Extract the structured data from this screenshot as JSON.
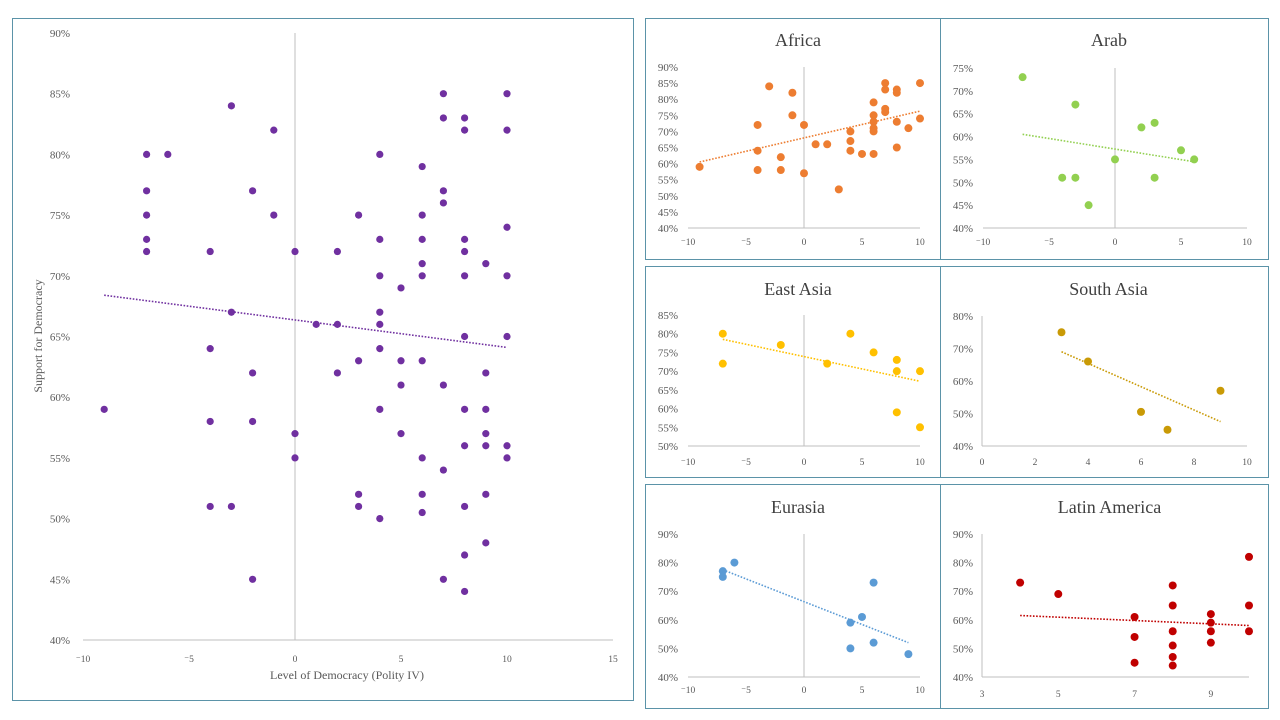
{
  "chart_data": [
    {
      "id": "main",
      "type": "scatter",
      "title": "",
      "xlabel": "Level  of Democracy  (Polity IV)",
      "ylabel": "Support  for Democracy",
      "xlim": [
        -10,
        15
      ],
      "ylim": [
        40,
        90
      ],
      "xticks": [
        "-10",
        "-5",
        "0",
        "5",
        "10",
        "15"
      ],
      "yticks": [
        "40%",
        "45%",
        "50%",
        "55%",
        "60%",
        "65%",
        "70%",
        "75%",
        "80%",
        "85%",
        "90%"
      ],
      "color": "#7030a0",
      "trendline": {
        "x": [
          -9,
          10
        ],
        "y": [
          68.4,
          64.1
        ],
        "style": "dotted"
      },
      "points": [
        [
          -9,
          59
        ],
        [
          -7,
          80
        ],
        [
          -7,
          77
        ],
        [
          -7,
          75
        ],
        [
          -7,
          73
        ],
        [
          -7,
          72
        ],
        [
          -6,
          80
        ],
        [
          -4,
          72
        ],
        [
          -4,
          64
        ],
        [
          -4,
          58
        ],
        [
          -4,
          51
        ],
        [
          -3,
          84
        ],
        [
          -3,
          67
        ],
        [
          -3,
          51
        ],
        [
          -2,
          77
        ],
        [
          -2,
          62
        ],
        [
          -2,
          58
        ],
        [
          -2,
          45
        ],
        [
          -1,
          82
        ],
        [
          -1,
          75
        ],
        [
          0,
          72
        ],
        [
          0,
          57
        ],
        [
          0,
          55
        ],
        [
          1,
          66
        ],
        [
          2,
          72
        ],
        [
          2,
          66
        ],
        [
          2,
          62
        ],
        [
          3,
          75
        ],
        [
          3,
          63
        ],
        [
          3,
          52
        ],
        [
          3,
          51
        ],
        [
          4,
          80
        ],
        [
          4,
          73
        ],
        [
          4,
          70
        ],
        [
          4,
          67
        ],
        [
          4,
          66
        ],
        [
          4,
          64
        ],
        [
          4,
          59
        ],
        [
          4,
          50
        ],
        [
          5,
          69
        ],
        [
          5,
          63
        ],
        [
          5,
          61
        ],
        [
          5,
          57
        ],
        [
          6,
          79
        ],
        [
          6,
          75
        ],
        [
          6,
          73
        ],
        [
          6,
          71
        ],
        [
          6,
          70
        ],
        [
          6,
          63
        ],
        [
          6,
          55
        ],
        [
          6,
          52
        ],
        [
          6,
          50.5
        ],
        [
          7,
          85
        ],
        [
          7,
          83
        ],
        [
          7,
          77
        ],
        [
          7,
          76
        ],
        [
          7,
          61
        ],
        [
          7,
          54
        ],
        [
          7,
          45
        ],
        [
          8,
          83
        ],
        [
          8,
          82
        ],
        [
          8,
          73
        ],
        [
          8,
          72
        ],
        [
          8,
          70
        ],
        [
          8,
          65
        ],
        [
          8,
          59
        ],
        [
          8,
          56
        ],
        [
          8,
          51
        ],
        [
          8,
          47
        ],
        [
          8,
          44
        ],
        [
          9,
          71
        ],
        [
          9,
          62
        ],
        [
          9,
          59
        ],
        [
          9,
          57
        ],
        [
          9,
          56
        ],
        [
          9,
          52
        ],
        [
          9,
          48
        ],
        [
          10,
          85
        ],
        [
          10,
          82
        ],
        [
          10,
          74
        ],
        [
          10,
          70
        ],
        [
          10,
          65
        ],
        [
          10,
          56
        ],
        [
          10,
          55
        ]
      ]
    },
    {
      "id": "africa",
      "type": "scatter",
      "title": "Africa",
      "xlim": [
        -10,
        10
      ],
      "ylim": [
        40,
        90
      ],
      "xticks": [
        "-10",
        "-5",
        "0",
        "5",
        "10"
      ],
      "yticks": [
        "40%",
        "45%",
        "50%",
        "55%",
        "60%",
        "65%",
        "70%",
        "75%",
        "80%",
        "85%",
        "90%"
      ],
      "color": "#ed7d31",
      "trendline": {
        "x": [
          -9,
          10
        ],
        "y": [
          60.5,
          76.3
        ],
        "style": "dotted"
      },
      "points": [
        [
          -9,
          59
        ],
        [
          -4,
          72
        ],
        [
          -4,
          64
        ],
        [
          -4,
          58
        ],
        [
          -3,
          84
        ],
        [
          -2,
          62
        ],
        [
          -2,
          58
        ],
        [
          -1,
          82
        ],
        [
          -1,
          75
        ],
        [
          0,
          72
        ],
        [
          0,
          57
        ],
        [
          1,
          66
        ],
        [
          2,
          66
        ],
        [
          3,
          52
        ],
        [
          4,
          70
        ],
        [
          4,
          67
        ],
        [
          4,
          64
        ],
        [
          5,
          63
        ],
        [
          6,
          79
        ],
        [
          6,
          75
        ],
        [
          6,
          73
        ],
        [
          6,
          71
        ],
        [
          6,
          70
        ],
        [
          6,
          63
        ],
        [
          7,
          85
        ],
        [
          7,
          83
        ],
        [
          7,
          77
        ],
        [
          7,
          76
        ],
        [
          8,
          83
        ],
        [
          8,
          82
        ],
        [
          8,
          73
        ],
        [
          8,
          65
        ],
        [
          9,
          71
        ],
        [
          10,
          85
        ],
        [
          10,
          74
        ]
      ]
    },
    {
      "id": "arab",
      "type": "scatter",
      "title": "Arab",
      "xlim": [
        -10,
        10
      ],
      "ylim": [
        40,
        75
      ],
      "xticks": [
        "-10",
        "-5",
        "0",
        "5",
        "10"
      ],
      "yticks": [
        "40%",
        "45%",
        "50%",
        "55%",
        "60%",
        "65%",
        "70%",
        "75%"
      ],
      "color": "#92d050",
      "trendline": {
        "x": [
          -7,
          6
        ],
        "y": [
          60.5,
          54.5
        ],
        "style": "dotted"
      },
      "points": [
        [
          -7,
          73
        ],
        [
          -4,
          51
        ],
        [
          -3,
          67
        ],
        [
          -3,
          51
        ],
        [
          -2,
          45
        ],
        [
          0,
          55
        ],
        [
          2,
          62
        ],
        [
          3,
          63
        ],
        [
          3,
          51
        ],
        [
          5,
          57
        ],
        [
          6,
          55
        ]
      ]
    },
    {
      "id": "east-asia",
      "type": "scatter",
      "title": "East Asia",
      "xlim": [
        -10,
        10
      ],
      "ylim": [
        50,
        85
      ],
      "xticks": [
        "-10",
        "-5",
        "0",
        "5",
        "10"
      ],
      "yticks": [
        "50%",
        "55%",
        "60%",
        "65%",
        "70%",
        "75%",
        "80%",
        "85%"
      ],
      "color": "#ffc000",
      "trendline": {
        "x": [
          -7,
          10
        ],
        "y": [
          78.5,
          67.3
        ],
        "style": "dotted"
      },
      "points": [
        [
          -7,
          80
        ],
        [
          -7,
          72
        ],
        [
          -2,
          77
        ],
        [
          2,
          72
        ],
        [
          4,
          80
        ],
        [
          6,
          75
        ],
        [
          8,
          73
        ],
        [
          8,
          70
        ],
        [
          8,
          59
        ],
        [
          10,
          70
        ],
        [
          10,
          55
        ]
      ]
    },
    {
      "id": "south-asia",
      "type": "scatter",
      "title": "South Asia",
      "xlim": [
        0,
        10
      ],
      "ylim": [
        40,
        80
      ],
      "xticks": [
        "0",
        "2",
        "4",
        "6",
        "8",
        "10"
      ],
      "yticks": [
        "40%",
        "50%",
        "60%",
        "70%",
        "80%"
      ],
      "color": "#c99a06",
      "trendline": {
        "x": [
          3,
          9
        ],
        "y": [
          69,
          47.5
        ],
        "style": "dotted"
      },
      "points": [
        [
          3,
          75
        ],
        [
          4,
          66
        ],
        [
          6,
          50.5
        ],
        [
          7,
          45
        ],
        [
          9,
          57
        ]
      ]
    },
    {
      "id": "eurasia",
      "type": "scatter",
      "title": "Eurasia",
      "xlim": [
        -10,
        10
      ],
      "ylim": [
        40,
        90
      ],
      "xticks": [
        "-10",
        "-5",
        "0",
        "5",
        "10"
      ],
      "yticks": [
        "40%",
        "50%",
        "60%",
        "70%",
        "80%",
        "90%"
      ],
      "color": "#5b9bd5",
      "trendline": {
        "x": [
          -7,
          9
        ],
        "y": [
          77.5,
          52
        ],
        "style": "dotted"
      },
      "points": [
        [
          -7,
          77
        ],
        [
          -7,
          75
        ],
        [
          -6,
          80
        ],
        [
          4,
          59
        ],
        [
          4,
          50
        ],
        [
          5,
          61
        ],
        [
          6,
          73
        ],
        [
          6,
          52
        ],
        [
          9,
          48
        ]
      ]
    },
    {
      "id": "latin-america",
      "type": "scatter",
      "title": "Latin America",
      "xlim": [
        3,
        10
      ],
      "ylim": [
        40,
        90
      ],
      "xticks": [
        "3",
        "5",
        "7",
        "9"
      ],
      "yticks": [
        "40%",
        "50%",
        "60%",
        "70%",
        "80%",
        "90%"
      ],
      "color": "#c00000",
      "trendline": {
        "x": [
          4,
          10
        ],
        "y": [
          61.5,
          58
        ],
        "style": "dotted"
      },
      "points": [
        [
          4,
          73
        ],
        [
          5,
          69
        ],
        [
          7,
          61
        ],
        [
          7,
          54
        ],
        [
          7,
          45
        ],
        [
          8,
          72
        ],
        [
          8,
          65
        ],
        [
          8,
          56
        ],
        [
          8,
          51
        ],
        [
          8,
          47
        ],
        [
          8,
          44
        ],
        [
          9,
          62
        ],
        [
          9,
          59
        ],
        [
          9,
          56
        ],
        [
          9,
          52
        ],
        [
          10,
          82
        ],
        [
          10,
          65
        ],
        [
          10,
          56
        ]
      ]
    }
  ]
}
